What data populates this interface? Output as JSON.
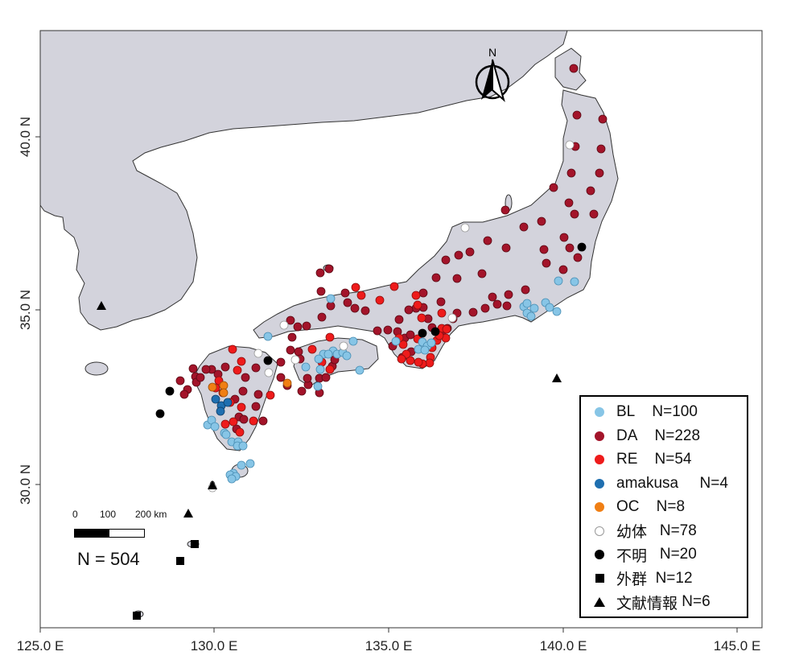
{
  "map": {
    "x_ticks": [
      "125.0 E",
      "130.0 E",
      "135.0 E",
      "140.0 E",
      "145.0 E"
    ],
    "y_ticks": [
      "30.0 N",
      "35.0 N",
      "40.0 N"
    ],
    "north_label": "N",
    "land_color": "#d3d3dc",
    "sea_color": "#ffffff",
    "border_color": "#333333"
  },
  "scale_bar": {
    "labels": [
      "0",
      "100",
      "200 km"
    ]
  },
  "total": "N = 504",
  "legend": [
    {
      "label": "BL",
      "count": "N=100",
      "symbol": "dot",
      "color": "#87c5e6",
      "gap": "    "
    },
    {
      "label": "DA",
      "count": "N=228",
      "symbol": "dot",
      "color": "#a3142a",
      "gap": "    "
    },
    {
      "label": "RE",
      "count": "N=54",
      "symbol": "dot",
      "color": "#ee1b1b",
      "gap": "    "
    },
    {
      "label": "amakusa",
      "count": "N=4",
      "symbol": "dot",
      "color": "#1f6fb0",
      "gap": "     "
    },
    {
      "label": "OC",
      "count": "N=8",
      "symbol": "dot",
      "color": "#f07f14",
      "gap": "    "
    },
    {
      "label": "幼体",
      "count": "N=78",
      "symbol": "hollow",
      "color": "#ffffff",
      "gap": "   "
    },
    {
      "label": "不明",
      "count": "N=20",
      "symbol": "dot",
      "color": "#000000",
      "gap": "   "
    },
    {
      "label": "外群",
      "count": "N=12",
      "symbol": "square",
      "color": "#000000",
      "gap": "  "
    },
    {
      "label": "文献情報",
      "count": "N=6",
      "symbol": "triangle",
      "color": "#000000",
      "gap": " "
    }
  ],
  "markers": {
    "BL": [
      [
        411,
        371
      ],
      [
        333,
        418
      ],
      [
        439,
        424
      ],
      [
        447,
        460
      ],
      [
        414,
        436
      ],
      [
        419,
        440
      ],
      [
        402,
        440
      ],
      [
        396,
        446
      ],
      [
        398,
        459
      ],
      [
        380,
        456
      ],
      [
        395,
        480
      ],
      [
        408,
        440
      ],
      [
        426,
        438
      ],
      [
        431,
        442
      ],
      [
        492,
        424
      ],
      [
        525,
        425
      ],
      [
        531,
        430
      ],
      [
        520,
        434
      ],
      [
        528,
        435
      ],
      [
        536,
        426
      ],
      [
        651,
        381
      ],
      [
        655,
        389
      ],
      [
        660,
        393
      ],
      [
        664,
        383
      ],
      [
        655,
        377
      ],
      [
        678,
        376
      ],
      [
        683,
        382
      ],
      [
        692,
        387
      ],
      [
        694,
        349
      ],
      [
        714,
        350
      ],
      [
        258,
        528
      ],
      [
        263,
        522
      ],
      [
        267,
        530
      ],
      [
        279,
        538
      ],
      [
        281,
        540
      ],
      [
        288,
        549
      ],
      [
        296,
        549
      ],
      [
        295,
        554
      ],
      [
        302,
        554
      ],
      [
        311,
        576
      ],
      [
        300,
        578
      ],
      [
        290,
        588
      ],
      [
        286,
        590
      ],
      [
        293,
        592
      ],
      [
        288,
        595
      ]
    ],
    "DA": [
      [
        713,
        85
      ],
      [
        717,
        143
      ],
      [
        749,
        148
      ],
      [
        715,
        182
      ],
      [
        747,
        185
      ],
      [
        710,
        215
      ],
      [
        745,
        215
      ],
      [
        734,
        237
      ],
      [
        688,
        233
      ],
      [
        714,
        266
      ],
      [
        738,
        266
      ],
      [
        673,
        275
      ],
      [
        701,
        295
      ],
      [
        676,
        310
      ],
      [
        651,
        282
      ],
      [
        629,
        308
      ],
      [
        606,
        299
      ],
      [
        584,
        313
      ],
      [
        570,
        317
      ],
      [
        599,
        340
      ],
      [
        554,
        323
      ],
      [
        542,
        345
      ],
      [
        568,
        346
      ],
      [
        548,
        375
      ],
      [
        526,
        364
      ],
      [
        526,
        382
      ],
      [
        532,
        396
      ],
      [
        537,
        407
      ],
      [
        549,
        415
      ],
      [
        556,
        408
      ],
      [
        563,
        396
      ],
      [
        568,
        389
      ],
      [
        588,
        388
      ],
      [
        603,
        383
      ],
      [
        618,
        378
      ],
      [
        630,
        380
      ],
      [
        612,
        369
      ],
      [
        632,
        366
      ],
      [
        653,
        360
      ],
      [
        679,
        327
      ],
      [
        700,
        335
      ],
      [
        708,
        308
      ],
      [
        718,
        320
      ],
      [
        707,
        252
      ],
      [
        628,
        261
      ],
      [
        517,
        383
      ],
      [
        508,
        385
      ],
      [
        496,
        397
      ],
      [
        494,
        412
      ],
      [
        482,
        410
      ],
      [
        488,
        430
      ],
      [
        511,
        437
      ],
      [
        500,
        444
      ],
      [
        503,
        420
      ],
      [
        510,
        416
      ],
      [
        469,
        411
      ],
      [
        454,
        386
      ],
      [
        441,
        383
      ],
      [
        432,
        376
      ],
      [
        429,
        364
      ],
      [
        411,
        380
      ],
      [
        399,
        362
      ],
      [
        398,
        339
      ],
      [
        409,
        334
      ],
      [
        400,
        394
      ],
      [
        381,
        405
      ],
      [
        370,
        406
      ],
      [
        361,
        398
      ],
      [
        363,
        419
      ],
      [
        371,
        437
      ],
      [
        373,
        446
      ],
      [
        361,
        435
      ],
      [
        349,
        450
      ],
      [
        349,
        469
      ],
      [
        357,
        479
      ],
      [
        375,
        486
      ],
      [
        397,
        488
      ],
      [
        383,
        478
      ],
      [
        382,
        470
      ],
      [
        397,
        470
      ],
      [
        413,
        455
      ],
      [
        416,
        447
      ],
      [
        405,
        469
      ],
      [
        318,
        457
      ],
      [
        305,
        469
      ],
      [
        302,
        486
      ],
      [
        280,
        456
      ],
      [
        271,
        465
      ],
      [
        263,
        459
      ],
      [
        256,
        459
      ],
      [
        240,
        458
      ],
      [
        243,
        468
      ],
      [
        224,
        473
      ],
      [
        292,
        496
      ],
      [
        297,
        518
      ],
      [
        303,
        521
      ],
      [
        321,
        490
      ],
      [
        318,
        505
      ],
      [
        327,
        523
      ],
      [
        294,
        533
      ],
      [
        244,
        475
      ],
      [
        233,
        484
      ],
      [
        229,
        490
      ],
      [
        249,
        469
      ]
    ],
    "RE": [
      [
        472,
        373
      ],
      [
        490,
        356
      ],
      [
        517,
        367
      ],
      [
        519,
        379
      ],
      [
        524,
        395
      ],
      [
        549,
        389
      ],
      [
        549,
        408
      ],
      [
        555,
        409
      ],
      [
        554,
        420
      ],
      [
        543,
        423
      ],
      [
        546,
        417
      ],
      [
        537,
        432
      ],
      [
        535,
        444
      ],
      [
        534,
        451
      ],
      [
        525,
        452
      ],
      [
        520,
        450
      ],
      [
        510,
        448
      ],
      [
        505,
        440
      ],
      [
        499,
        446
      ],
      [
        501,
        428
      ],
      [
        496,
        420
      ],
      [
        519,
        421
      ],
      [
        410,
        419
      ],
      [
        388,
        434
      ],
      [
        400,
        450
      ],
      [
        410,
        459
      ],
      [
        442,
        357
      ],
      [
        449,
        367
      ],
      [
        289,
        434
      ],
      [
        300,
        449
      ],
      [
        295,
        460
      ],
      [
        277,
        488
      ],
      [
        272,
        473
      ],
      [
        268,
        482
      ],
      [
        286,
        500
      ],
      [
        300,
        506
      ],
      [
        315,
        523
      ],
      [
        336,
        491
      ],
      [
        298,
        537
      ],
      [
        290,
        524
      ],
      [
        280,
        527
      ]
    ],
    "amakusa": [
      [
        268,
        496
      ],
      [
        275,
        504
      ],
      [
        274,
        511
      ],
      [
        283,
        500
      ]
    ],
    "OC": [
      [
        264,
        481
      ],
      [
        278,
        479
      ],
      [
        357,
        476
      ],
      [
        278,
        488
      ]
    ],
    "hollow": [
      [
        708,
        180
      ],
      [
        578,
        283
      ],
      [
        353,
        404
      ],
      [
        427,
        430
      ],
      [
        367,
        447
      ],
      [
        334,
        463
      ],
      [
        321,
        439
      ],
      [
        264,
        606
      ],
      [
        562,
        395
      ]
    ],
    "unknown": [
      [
        723,
        307
      ],
      [
        525,
        414
      ],
      [
        541,
        412
      ],
      [
        333,
        448
      ],
      [
        211,
        486
      ],
      [
        199,
        514
      ]
    ],
    "square": [
      [
        224,
        697
      ],
      [
        242,
        676
      ],
      [
        170,
        765
      ]
    ],
    "triangle": [
      [
        126,
        380
      ],
      [
        692,
        470
      ],
      [
        234,
        638
      ],
      [
        264,
        603
      ]
    ]
  }
}
